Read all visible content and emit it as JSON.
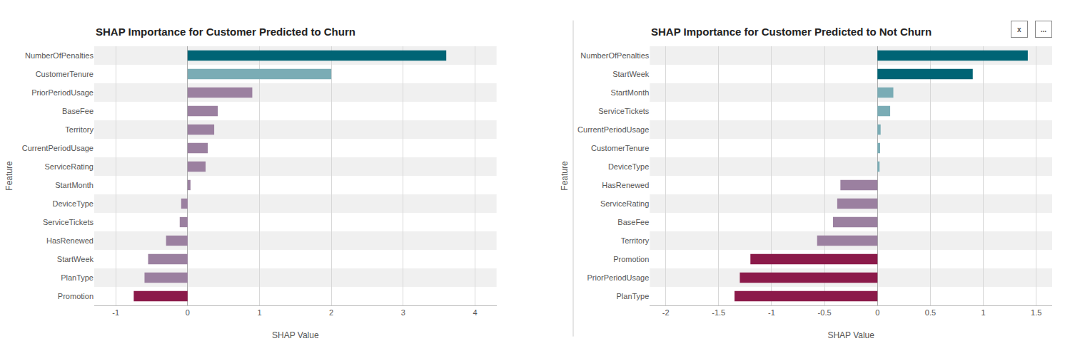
{
  "chart_data": [
    {
      "type": "bar",
      "orientation": "horizontal",
      "title": "SHAP Importance for Customer Predicted to Churn",
      "xlabel": "SHAP Value",
      "ylabel": "Feature",
      "categories": [
        "NumberOfPenalties",
        "CustomerTenure",
        "PriorPeriodUsage",
        "BaseFee",
        "Territory",
        "CurrentPeriodUsage",
        "ServiceRating",
        "StartMonth",
        "DeviceType",
        "ServiceTickets",
        "HasRenewed",
        "StartWeek",
        "PlanType",
        "Promotion"
      ],
      "values": [
        3.6,
        2.0,
        0.9,
        0.42,
        0.37,
        0.28,
        0.25,
        0.04,
        -0.09,
        -0.11,
        -0.3,
        -0.55,
        -0.6,
        -0.75
      ],
      "colors": [
        "#006475",
        "#7aacb5",
        "#9b80a0",
        "#9b80a0",
        "#9b80a0",
        "#9b80a0",
        "#9b80a0",
        "#9b80a0",
        "#9b80a0",
        "#9b80a0",
        "#9b80a0",
        "#9b80a0",
        "#9b80a0",
        "#8b1a4a"
      ],
      "xlim": [
        -1.3,
        4.3
      ],
      "xticks": [
        -1,
        0,
        1,
        2,
        3,
        4
      ],
      "grid": true
    },
    {
      "type": "bar",
      "orientation": "horizontal",
      "title": "SHAP Importance for Customer Predicted to Not Churn",
      "xlabel": "SHAP Value",
      "ylabel": "Feature",
      "categories": [
        "NumberOfPenalties",
        "StartWeek",
        "StartMonth",
        "ServiceTickets",
        "CurrentPeriodUsage",
        "CustomerTenure",
        "DeviceType",
        "HasRenewed",
        "ServiceRating",
        "BaseFee",
        "Territory",
        "Promotion",
        "PriorPeriodUsage",
        "PlanType"
      ],
      "values": [
        1.42,
        0.9,
        0.15,
        0.12,
        0.03,
        0.025,
        0.02,
        -0.35,
        -0.38,
        -0.42,
        -0.57,
        -1.2,
        -1.3,
        -1.35
      ],
      "colors": [
        "#006475",
        "#006475",
        "#7aacb5",
        "#7aacb5",
        "#7aacb5",
        "#7aacb5",
        "#7aacb5",
        "#9b80a0",
        "#9b80a0",
        "#9b80a0",
        "#9b80a0",
        "#8b1a4a",
        "#8b1a4a",
        "#8b1a4a"
      ],
      "xlim": [
        -2.15,
        1.65
      ],
      "xticks": [
        -2,
        -1.5,
        -1,
        -0.5,
        0,
        0.5,
        1,
        1.5
      ],
      "grid": true,
      "annotations": [
        "...",
        "x"
      ]
    }
  ]
}
